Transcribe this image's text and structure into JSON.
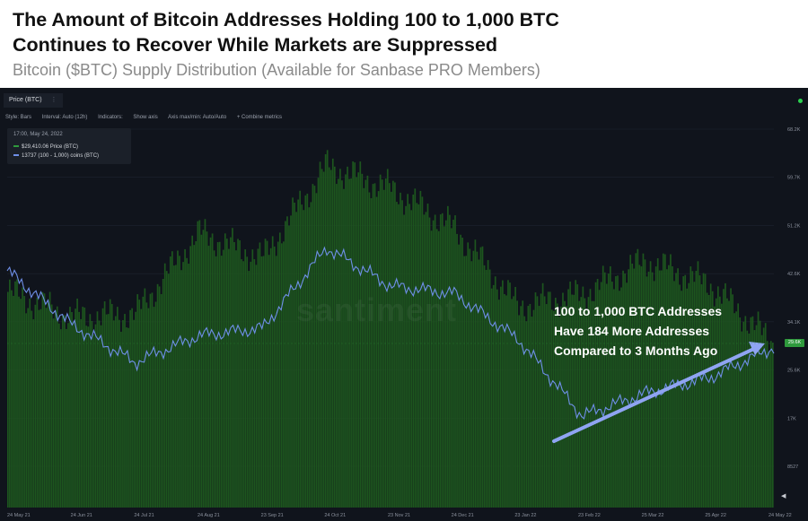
{
  "header": {
    "title": "The Amount of Bitcoin Addresses Holding 100 to 1,000 BTC Continues to Recover While Markets are Suppressed",
    "subtitle": "Bitcoin ($BTC) Supply Distribution (Available for Sanbase PRO Members)"
  },
  "panel": {
    "tab_label": "Price (BTC)",
    "tab_menu": "⋮",
    "toolbar": {
      "style": "Style: Bars",
      "interval": "Interval: Auto (12h)",
      "indicators": "Indicators:",
      "show_axis": "Show axis",
      "axis_minmax": "Axis max/min: Auto/Auto",
      "combine": "+ Combine metrics"
    },
    "info": {
      "date": "17:00, May 24, 2022",
      "row1": "$29,410.06 Price (BTC)",
      "row2": "13737 (100 - 1,000) coins (BTC)"
    },
    "watermark": "santiment",
    "note_lines": [
      "100 to 1,000 BTC Addresses",
      "Have 184 More Addresses",
      "Compared to 3 Months Ago"
    ],
    "current_price_badge": "29.6K",
    "scroll_arrow": "◀"
  },
  "colors": {
    "panel_bg": "#10141c",
    "bars": "#1f5a1f",
    "addresses_line": "#6f8fe8",
    "arrow": "#8fa4f2",
    "price_badge": "#2f9a3d"
  },
  "chart_data": {
    "type": "bar",
    "x_ticks": [
      "24 May 21",
      "24 Jun 21",
      "24 Jul 21",
      "24 Aug 21",
      "23 Sep 21",
      "24 Oct 21",
      "23 Nov 21",
      "24 Dec 21",
      "23 Jan 22",
      "23 Feb 22",
      "25 Mar 22",
      "25 Apr 22",
      "24 May 22"
    ],
    "y_ticks": [
      "68.2K",
      "59.7K",
      "51.2K",
      "42.6K",
      "34.1K",
      "25.6K",
      "17K",
      "8527"
    ],
    "y_range": [
      0,
      68200
    ],
    "series": [
      {
        "name": "Price (BTC)",
        "style": "bars",
        "x": [
          "24 May 21",
          "24 Jun 21",
          "24 Jul 21",
          "24 Aug 21",
          "23 Sep 21",
          "24 Oct 21",
          "23 Nov 21",
          "24 Dec 21",
          "23 Jan 22",
          "23 Feb 22",
          "25 Mar 22",
          "25 Apr 22",
          "24 May 22"
        ],
        "values": [
          38500,
          34000,
          34500,
          49000,
          44500,
          61000,
          57000,
          50000,
          36000,
          38000,
          44000,
          40000,
          29410
        ]
      },
      {
        "name": "(100 - 1,000) coins (BTC)",
        "style": "line",
        "x": [
          "24 May 21",
          "24 Jun 21",
          "24 Jul 21",
          "24 Aug 21",
          "23 Sep 21",
          "24 Oct 21",
          "23 Nov 21",
          "24 Dec 21",
          "23 Jan 22",
          "23 Feb 22",
          "25 Mar 22",
          "25 Apr 22",
          "24 May 22"
        ],
        "values": [
          0.62,
          0.48,
          0.38,
          0.45,
          0.47,
          0.68,
          0.58,
          0.56,
          0.44,
          0.24,
          0.3,
          0.34,
          0.42
        ]
      }
    ],
    "current_value": "13737",
    "annotation": "100 to 1,000 BTC Addresses Have 184 More Addresses Compared to 3 Months Ago"
  }
}
